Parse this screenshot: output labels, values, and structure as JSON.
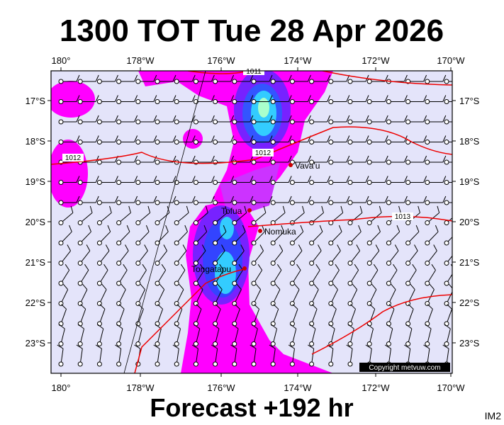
{
  "title": "1300 TOT Tue 28 Apr 2026",
  "footer": "Forecast +192 hr",
  "corner_label": "IM2",
  "copyright": "Copyright metvuw.com",
  "lon_labels": [
    "180°",
    "178°W",
    "176°W",
    "174°W",
    "172°W",
    "170°W"
  ],
  "lat_labels": [
    "17°S",
    "18°S",
    "19°S",
    "20°S",
    "21°S",
    "22°S",
    "23°S"
  ],
  "places": [
    "Vava'u",
    "Tofua",
    "Nomuka",
    "Tongatapu"
  ],
  "isobar_labels": [
    "1011",
    "1012",
    "1012",
    "1013"
  ]
}
